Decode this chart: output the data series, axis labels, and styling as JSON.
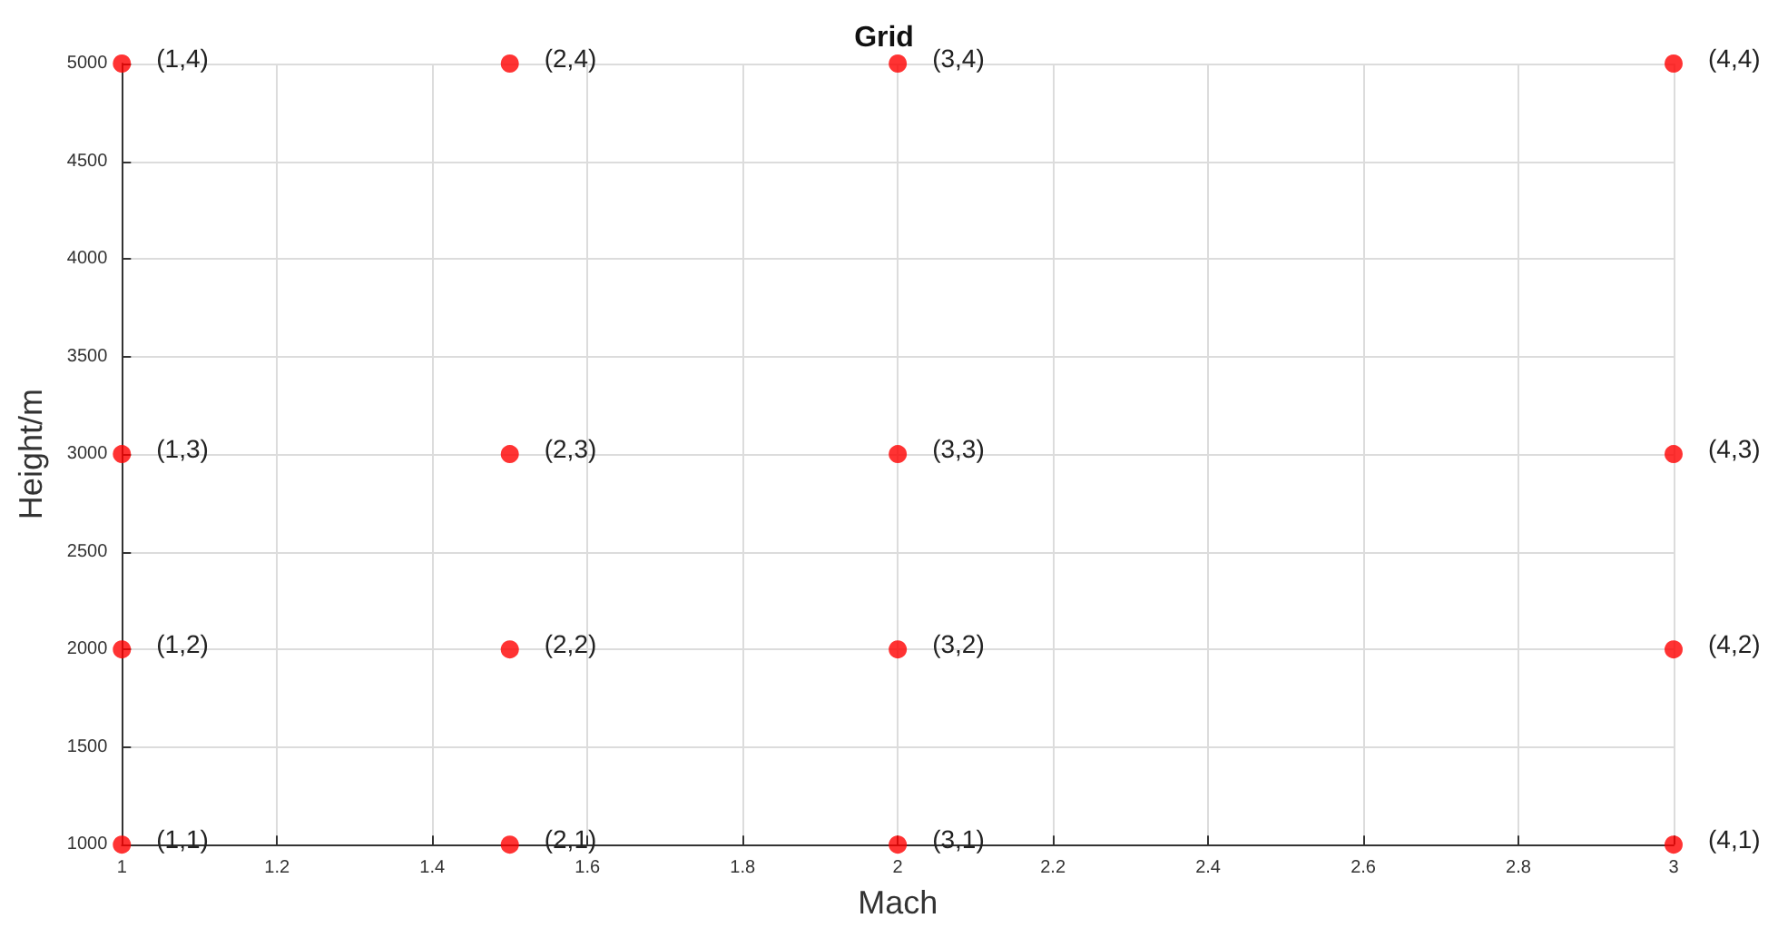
{
  "chart_data": {
    "type": "scatter",
    "title": "Grid",
    "xlabel": "Mach",
    "ylabel": "Height/m",
    "x": [
      1,
      1,
      1,
      1,
      1.5,
      1.5,
      1.5,
      1.5,
      2,
      2,
      2,
      2,
      3,
      3,
      3,
      3
    ],
    "series": [
      {
        "color": "#ff0000",
        "values": [
          1000,
          2000,
          3000,
          5000,
          1000,
          2000,
          3000,
          5000,
          1000,
          2000,
          3000,
          5000,
          1000,
          2000,
          3000,
          5000
        ]
      }
    ],
    "xlim": [
      1,
      3
    ],
    "xticks": [
      1,
      1.2,
      1.4,
      1.6,
      1.8,
      2,
      2.2,
      2.4,
      2.6,
      2.8,
      3
    ],
    "ylim": [
      1000,
      5000
    ],
    "yticks": [
      1000,
      1500,
      2000,
      2500,
      3000,
      3500,
      4000,
      4500,
      5000
    ],
    "grid": true,
    "marker": "circle",
    "annotations": [
      {
        "text": "(1,1)",
        "x": 1,
        "y": 1000
      },
      {
        "text": "(1,2)",
        "x": 1,
        "y": 2000
      },
      {
        "text": "(1,3)",
        "x": 1,
        "y": 3000
      },
      {
        "text": "(1,4)",
        "x": 1,
        "y": 5000
      },
      {
        "text": "(2,1)",
        "x": 1.5,
        "y": 1000
      },
      {
        "text": "(2,2)",
        "x": 1.5,
        "y": 2000
      },
      {
        "text": "(2,3)",
        "x": 1.5,
        "y": 3000
      },
      {
        "text": "(2,4)",
        "x": 1.5,
        "y": 5000
      },
      {
        "text": "(3,1)",
        "x": 2,
        "y": 1000
      },
      {
        "text": "(3,2)",
        "x": 2,
        "y": 2000
      },
      {
        "text": "(3,3)",
        "x": 2,
        "y": 3000
      },
      {
        "text": "(3,4)",
        "x": 2,
        "y": 5000
      },
      {
        "text": "(4,1)",
        "x": 3,
        "y": 1000
      },
      {
        "text": "(4,2)",
        "x": 3,
        "y": 2000
      },
      {
        "text": "(4,3)",
        "x": 3,
        "y": 3000
      },
      {
        "text": "(4,4)",
        "x": 3,
        "y": 5000
      }
    ]
  }
}
